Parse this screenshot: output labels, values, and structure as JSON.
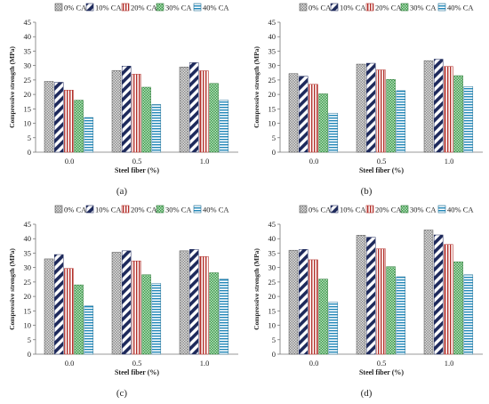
{
  "figure": {
    "legend_entries": [
      "0% CA",
      "10% CA",
      "20% CA",
      "30% CA",
      "40% CA"
    ],
    "colors": {
      "0% CA": "#9a9a9a",
      "10% CA": "#1e2a5c",
      "20% CA": "#b3302a",
      "30% CA": "#3a9a48",
      "40% CA": "#1f86b8"
    }
  },
  "chart_data": [
    {
      "type": "bar",
      "panel_label": "(a)",
      "categories": [
        "0.0",
        "0.5",
        "1.0"
      ],
      "xlabel": "Steel fiber (%)",
      "ylabel": "Compressive strength (MPa)",
      "ylim": [
        0,
        45
      ],
      "yticks": [
        0,
        5,
        10,
        15,
        20,
        25,
        30,
        35,
        40,
        45
      ],
      "legend_position": "top",
      "series": [
        {
          "name": "0% CA",
          "values": [
            24.5,
            28.3,
            29.5
          ]
        },
        {
          "name": "10% CA",
          "values": [
            24.2,
            29.8,
            31.0
          ]
        },
        {
          "name": "20% CA",
          "values": [
            21.5,
            27.0,
            28.2
          ]
        },
        {
          "name": "30% CA",
          "values": [
            18.0,
            22.5,
            23.8
          ]
        },
        {
          "name": "40% CA",
          "values": [
            12.0,
            16.5,
            18.0
          ]
        }
      ]
    },
    {
      "type": "bar",
      "panel_label": "(b)",
      "categories": [
        "0.0",
        "0.5",
        "1.0"
      ],
      "xlabel": "Steel fiber (%)",
      "ylabel": "Compressive strength (MPa)",
      "ylim": [
        0,
        45
      ],
      "yticks": [
        0,
        5,
        10,
        15,
        20,
        25,
        30,
        35,
        40,
        45
      ],
      "legend_position": "top",
      "series": [
        {
          "name": "0% CA",
          "values": [
            27.2,
            30.5,
            31.7
          ]
        },
        {
          "name": "10% CA",
          "values": [
            26.3,
            30.8,
            32.2
          ]
        },
        {
          "name": "20% CA",
          "values": [
            23.5,
            28.5,
            29.7
          ]
        },
        {
          "name": "30% CA",
          "values": [
            20.2,
            25.2,
            26.5
          ]
        },
        {
          "name": "40% CA",
          "values": [
            13.5,
            21.3,
            22.7
          ]
        }
      ]
    },
    {
      "type": "bar",
      "panel_label": "(c)",
      "categories": [
        "0.0",
        "0.5",
        "1.0"
      ],
      "xlabel": "Steel fiber (%)",
      "ylabel": "Compressive strength (MPa)",
      "ylim": [
        0,
        45
      ],
      "yticks": [
        0,
        5,
        10,
        15,
        20,
        25,
        30,
        35,
        40,
        45
      ],
      "legend_position": "top",
      "series": [
        {
          "name": "0% CA",
          "values": [
            33.0,
            35.3,
            35.8
          ]
        },
        {
          "name": "10% CA",
          "values": [
            34.5,
            35.8,
            36.3
          ]
        },
        {
          "name": "20% CA",
          "values": [
            29.7,
            32.3,
            33.8
          ]
        },
        {
          "name": "30% CA",
          "values": [
            24.0,
            27.5,
            28.2
          ]
        },
        {
          "name": "40% CA",
          "values": [
            16.7,
            24.5,
            26.0
          ]
        }
      ]
    },
    {
      "type": "bar",
      "panel_label": "(d)",
      "categories": [
        "0.0",
        "0.5",
        "1.0"
      ],
      "xlabel": "Steel fiber (%)",
      "ylabel": "Compressive strength (MPa)",
      "ylim": [
        0,
        45
      ],
      "yticks": [
        0,
        5,
        10,
        15,
        20,
        25,
        30,
        35,
        40,
        45
      ],
      "legend_position": "top",
      "series": [
        {
          "name": "0% CA",
          "values": [
            36.0,
            41.2,
            43.0
          ]
        },
        {
          "name": "10% CA",
          "values": [
            36.3,
            40.5,
            41.3
          ]
        },
        {
          "name": "20% CA",
          "values": [
            32.7,
            36.5,
            38.0
          ]
        },
        {
          "name": "30% CA",
          "values": [
            26.0,
            30.3,
            32.0
          ]
        },
        {
          "name": "40% CA",
          "values": [
            18.0,
            26.8,
            27.5
          ]
        }
      ]
    }
  ]
}
